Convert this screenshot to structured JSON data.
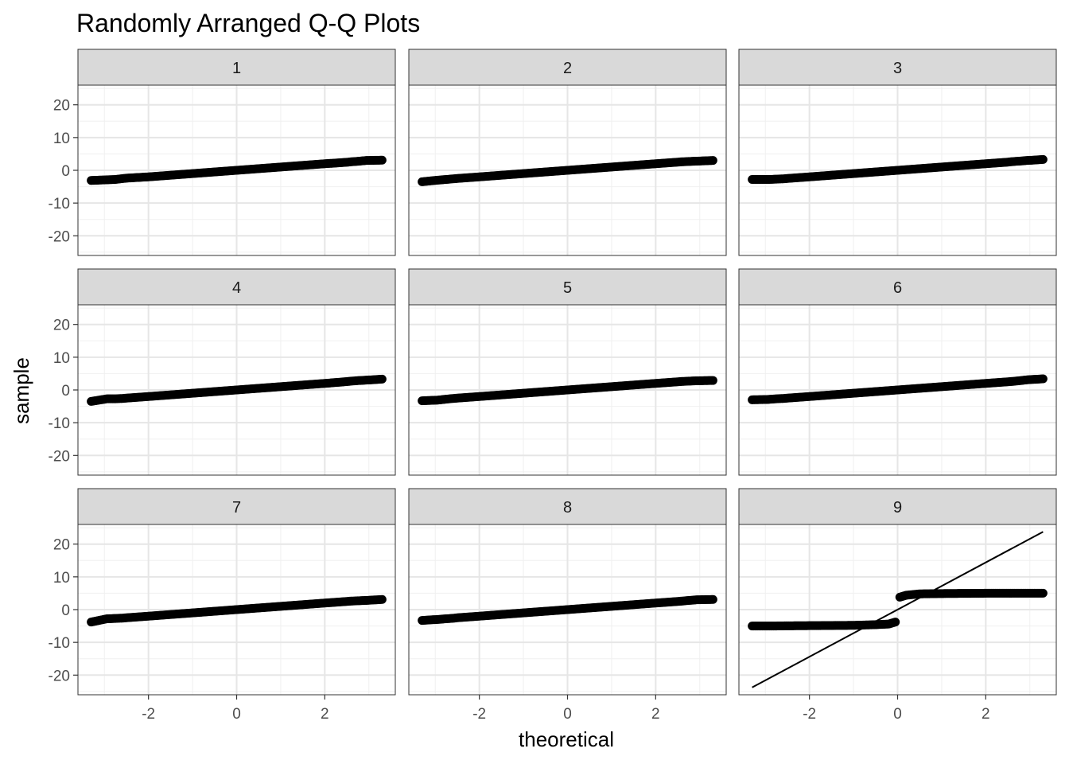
{
  "chart_data": {
    "type": "scatter",
    "title": "Randomly Arranged Q-Q Plots",
    "xlabel": "theoretical",
    "ylabel": "sample",
    "xlim": [
      -3.6,
      3.6
    ],
    "ylim": [
      -26,
      26
    ],
    "x_ticks": [
      -2,
      0,
      2
    ],
    "x_tick_labels": [
      "-2",
      "0",
      "2"
    ],
    "y_ticks": [
      -20,
      -10,
      0,
      10,
      20
    ],
    "y_tick_labels": [
      "-20",
      "-10",
      "0",
      "10",
      "20"
    ],
    "grid": true,
    "legend": "none",
    "panels": [
      {
        "label": "1",
        "points": [
          [
            -3.3,
            -3.1
          ],
          [
            -2.94,
            -2.9
          ],
          [
            -2.75,
            -2.8
          ],
          [
            -2.6,
            -2.55
          ],
          [
            -2.5,
            -2.4
          ],
          [
            -2.0,
            -2.0
          ],
          [
            -1.0,
            -1.0
          ],
          [
            0.0,
            0.0
          ],
          [
            1.0,
            1.0
          ],
          [
            2.0,
            2.0
          ],
          [
            2.5,
            2.45
          ],
          [
            2.6,
            2.6
          ],
          [
            2.75,
            2.75
          ],
          [
            2.94,
            3.0
          ],
          [
            3.3,
            3.1
          ]
        ],
        "line": {
          "slope": 1.0,
          "intercept": 0.0
        }
      },
      {
        "label": "2",
        "points": [
          [
            -3.3,
            -3.5
          ],
          [
            -2.94,
            -3.0
          ],
          [
            -2.75,
            -2.8
          ],
          [
            -2.6,
            -2.6
          ],
          [
            -2.5,
            -2.5
          ],
          [
            -2.0,
            -2.0
          ],
          [
            -1.0,
            -1.0
          ],
          [
            0.0,
            0.0
          ],
          [
            1.0,
            1.0
          ],
          [
            2.0,
            2.0
          ],
          [
            2.5,
            2.5
          ],
          [
            2.6,
            2.6
          ],
          [
            2.75,
            2.7
          ],
          [
            2.94,
            2.8
          ],
          [
            3.3,
            3.0
          ]
        ],
        "line": {
          "slope": 1.0,
          "intercept": 0.0
        }
      },
      {
        "label": "3",
        "points": [
          [
            -3.3,
            -2.8
          ],
          [
            -2.94,
            -2.8
          ],
          [
            -2.75,
            -2.7
          ],
          [
            -2.6,
            -2.6
          ],
          [
            -2.5,
            -2.5
          ],
          [
            -2.0,
            -2.0
          ],
          [
            -1.0,
            -1.0
          ],
          [
            0.0,
            0.0
          ],
          [
            1.0,
            1.0
          ],
          [
            2.0,
            2.0
          ],
          [
            2.5,
            2.5
          ],
          [
            2.6,
            2.65
          ],
          [
            2.75,
            2.8
          ],
          [
            2.94,
            3.0
          ],
          [
            3.3,
            3.3
          ]
        ],
        "line": {
          "slope": 1.0,
          "intercept": 0.0
        }
      },
      {
        "label": "4",
        "points": [
          [
            -3.3,
            -3.5
          ],
          [
            -2.94,
            -2.7
          ],
          [
            -2.75,
            -2.7
          ],
          [
            -2.6,
            -2.6
          ],
          [
            -2.5,
            -2.5
          ],
          [
            -2.0,
            -2.0
          ],
          [
            -1.0,
            -1.0
          ],
          [
            0.0,
            0.0
          ],
          [
            1.0,
            1.0
          ],
          [
            2.0,
            2.0
          ],
          [
            2.5,
            2.55
          ],
          [
            2.6,
            2.7
          ],
          [
            2.75,
            2.85
          ],
          [
            2.94,
            3.0
          ],
          [
            3.3,
            3.3
          ]
        ],
        "line": {
          "slope": 1.0,
          "intercept": 0.0
        }
      },
      {
        "label": "5",
        "points": [
          [
            -3.3,
            -3.3
          ],
          [
            -2.94,
            -3.1
          ],
          [
            -2.75,
            -2.8
          ],
          [
            -2.6,
            -2.6
          ],
          [
            -2.5,
            -2.5
          ],
          [
            -2.0,
            -2.0
          ],
          [
            -1.0,
            -1.0
          ],
          [
            0.0,
            0.0
          ],
          [
            1.0,
            1.0
          ],
          [
            2.0,
            2.0
          ],
          [
            2.5,
            2.5
          ],
          [
            2.6,
            2.6
          ],
          [
            2.75,
            2.7
          ],
          [
            2.94,
            2.8
          ],
          [
            3.3,
            2.9
          ]
        ],
        "line": {
          "slope": 1.0,
          "intercept": 0.0
        }
      },
      {
        "label": "6",
        "points": [
          [
            -3.3,
            -3.0
          ],
          [
            -2.94,
            -2.9
          ],
          [
            -2.75,
            -2.7
          ],
          [
            -2.6,
            -2.6
          ],
          [
            -2.5,
            -2.5
          ],
          [
            -2.0,
            -2.0
          ],
          [
            -1.0,
            -1.0
          ],
          [
            0.0,
            0.0
          ],
          [
            1.0,
            1.0
          ],
          [
            2.0,
            2.0
          ],
          [
            2.5,
            2.5
          ],
          [
            2.6,
            2.6
          ],
          [
            2.75,
            2.8
          ],
          [
            2.94,
            3.1
          ],
          [
            3.3,
            3.4
          ]
        ],
        "line": {
          "slope": 1.0,
          "intercept": 0.0
        }
      },
      {
        "label": "7",
        "points": [
          [
            -3.3,
            -3.8
          ],
          [
            -2.94,
            -2.8
          ],
          [
            -2.75,
            -2.7
          ],
          [
            -2.6,
            -2.6
          ],
          [
            -2.5,
            -2.5
          ],
          [
            -2.0,
            -2.0
          ],
          [
            -1.0,
            -1.0
          ],
          [
            0.0,
            0.0
          ],
          [
            1.0,
            1.0
          ],
          [
            2.0,
            2.0
          ],
          [
            2.5,
            2.5
          ],
          [
            2.6,
            2.6
          ],
          [
            2.75,
            2.7
          ],
          [
            2.94,
            2.8
          ],
          [
            3.3,
            3.1
          ]
        ],
        "line": {
          "slope": 1.0,
          "intercept": 0.0
        }
      },
      {
        "label": "8",
        "points": [
          [
            -3.3,
            -3.3
          ],
          [
            -2.94,
            -3.0
          ],
          [
            -2.75,
            -2.8
          ],
          [
            -2.6,
            -2.65
          ],
          [
            -2.5,
            -2.5
          ],
          [
            -2.0,
            -2.0
          ],
          [
            -1.0,
            -1.0
          ],
          [
            0.0,
            0.0
          ],
          [
            1.0,
            1.0
          ],
          [
            2.0,
            2.0
          ],
          [
            2.5,
            2.5
          ],
          [
            2.6,
            2.6
          ],
          [
            2.75,
            2.8
          ],
          [
            2.94,
            3.0
          ],
          [
            3.3,
            3.1
          ]
        ],
        "line": {
          "slope": 1.0,
          "intercept": 0.0
        }
      },
      {
        "label": "9",
        "points": [
          [
            -3.3,
            -5.0
          ],
          [
            -2.94,
            -5.0
          ],
          [
            -2.75,
            -5.0
          ],
          [
            -2.5,
            -4.95
          ],
          [
            -2.0,
            -4.9
          ],
          [
            -1.5,
            -4.85
          ],
          [
            -1.0,
            -4.8
          ],
          [
            -0.5,
            -4.6
          ],
          [
            -0.2,
            -4.4
          ],
          [
            -0.05,
            -3.8
          ],
          [
            0.05,
            3.8
          ],
          [
            0.2,
            4.4
          ],
          [
            0.5,
            4.8
          ],
          [
            1.0,
            4.9
          ],
          [
            1.5,
            4.95
          ],
          [
            2.0,
            5.0
          ],
          [
            2.5,
            5.0
          ],
          [
            2.75,
            5.0
          ],
          [
            2.94,
            5.0
          ],
          [
            3.3,
            5.0
          ]
        ],
        "line": {
          "slope": 7.2,
          "intercept": 0.0
        }
      }
    ]
  }
}
